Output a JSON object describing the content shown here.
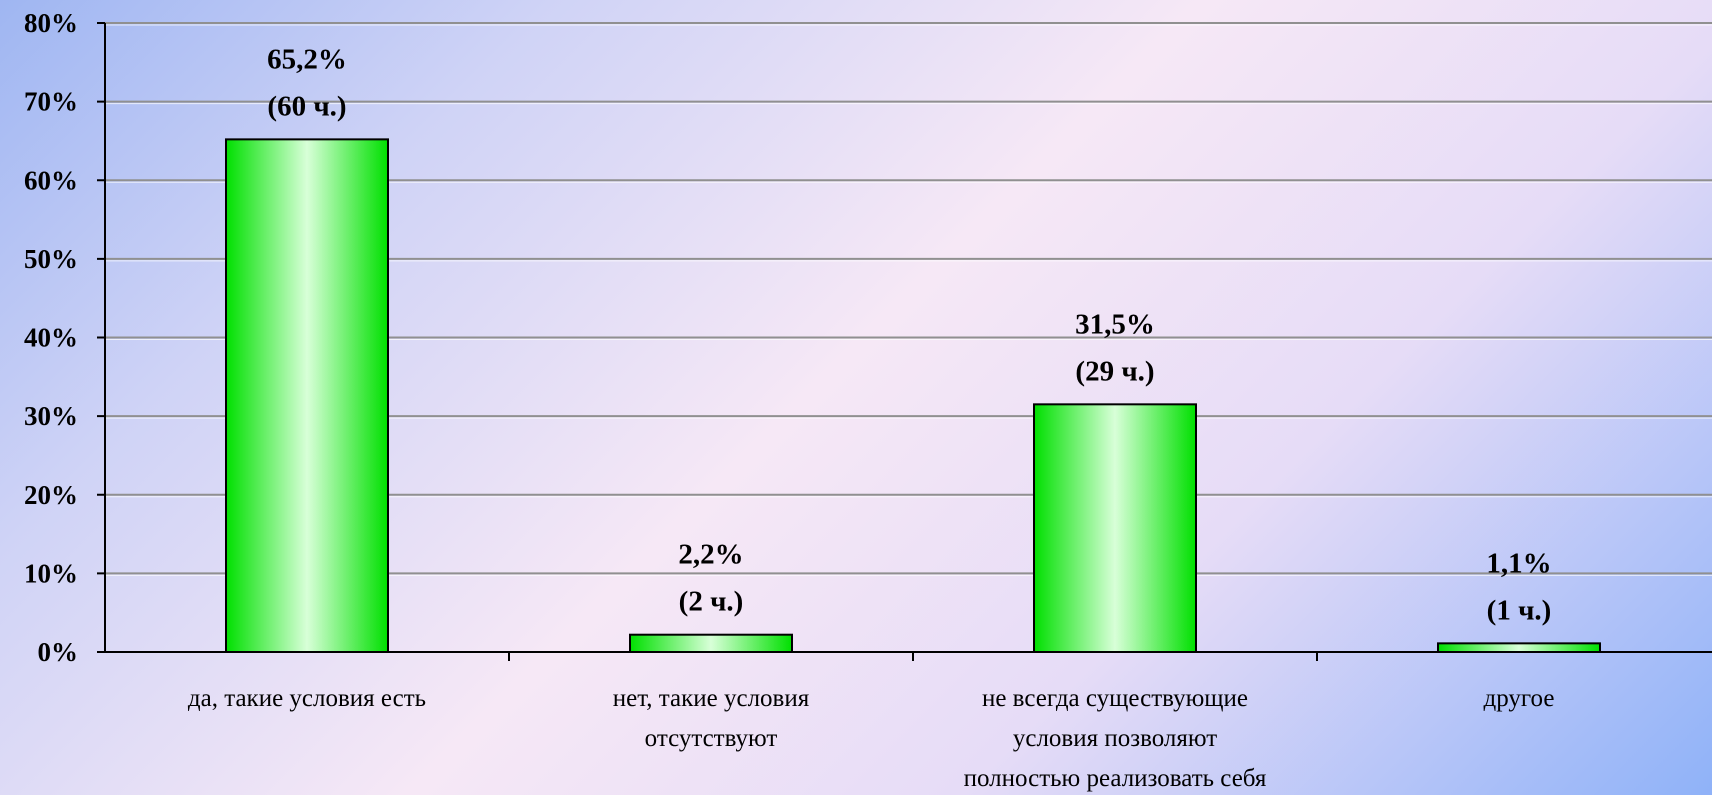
{
  "chart_data": {
    "type": "bar",
    "categories": [
      [
        "да, такие условия есть"
      ],
      [
        "нет, такие условия",
        "отсутствуют"
      ],
      [
        "не всегда существующие",
        "условия позволяют",
        "полностью реализовать себя"
      ],
      [
        "другое"
      ]
    ],
    "values": [
      65.2,
      2.2,
      31.5,
      1.1
    ],
    "data_labels": [
      [
        "65,2%",
        "(60 ч.)"
      ],
      [
        "2,2%",
        "(2 ч.)"
      ],
      [
        "31,5%",
        "(29 ч.)"
      ],
      [
        "1,1%",
        "(1 ч.)"
      ]
    ],
    "ylim": [
      0,
      80
    ],
    "yticks": [
      0,
      10,
      20,
      30,
      40,
      50,
      60,
      70,
      80
    ],
    "ytick_labels": [
      "0%",
      "10%",
      "20%",
      "30%",
      "40%",
      "50%",
      "60%",
      "70%",
      "80%"
    ],
    "grid": true,
    "colors": {
      "bar_edge": "#00e000",
      "bar_center": "#d8ffd8",
      "bar_outline": "#000000",
      "grid": "#909090"
    }
  }
}
